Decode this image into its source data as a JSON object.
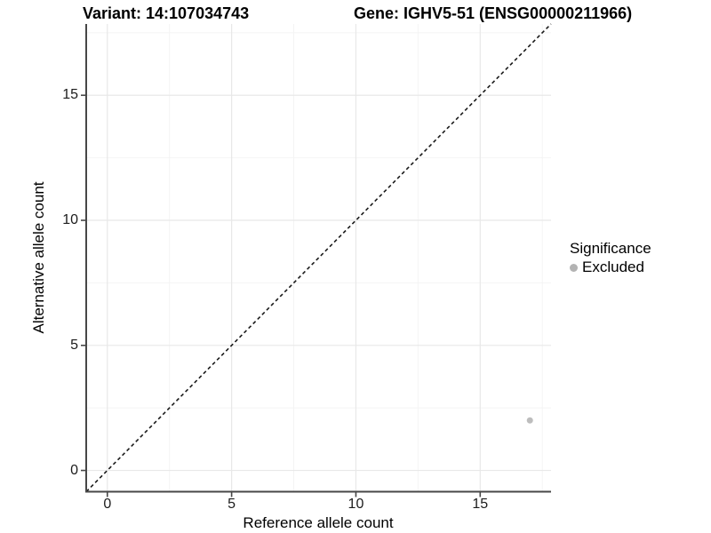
{
  "titles": {
    "variant": "Variant: 14:107034743",
    "gene": "Gene: IGHV5-51 (ENSG00000211966)"
  },
  "chart_data": {
    "type": "scatter",
    "title_left": "Variant: 14:107034743",
    "title_right": "Gene: IGHV5-51 (ENSG00000211966)",
    "xlabel": "Reference allele count",
    "ylabel": "Alternative allele count",
    "xlim": [
      -0.85,
      17.85
    ],
    "ylim": [
      -0.85,
      17.85
    ],
    "x_ticks": [
      0,
      5,
      10,
      15
    ],
    "y_ticks": [
      0,
      5,
      10,
      15
    ],
    "x_minor_ticks": [
      2.5,
      7.5,
      12.5,
      17.5
    ],
    "y_minor_ticks": [
      2.5,
      7.5,
      12.5,
      17.5
    ],
    "grid": "major-and-minor",
    "reference_line": {
      "type": "identity",
      "equation": "y = x",
      "style": "dashed",
      "color": "#1a1a1a"
    },
    "series": [
      {
        "name": "Excluded",
        "color": "#bdbdbd",
        "points": [
          {
            "x": 17,
            "y": 2
          }
        ]
      }
    ],
    "legend": {
      "position": "right",
      "title": "Significance",
      "items": [
        {
          "label": "Excluded",
          "color": "#b3b3b3"
        }
      ]
    },
    "style": {
      "point_color": "#bdbdbd",
      "point_radius": 3.5,
      "grid_major_color": "#e8e8e8",
      "grid_minor_color": "#f4f4f4",
      "axis_line_color": "#474747",
      "text_color": "#1c1c1c"
    }
  }
}
